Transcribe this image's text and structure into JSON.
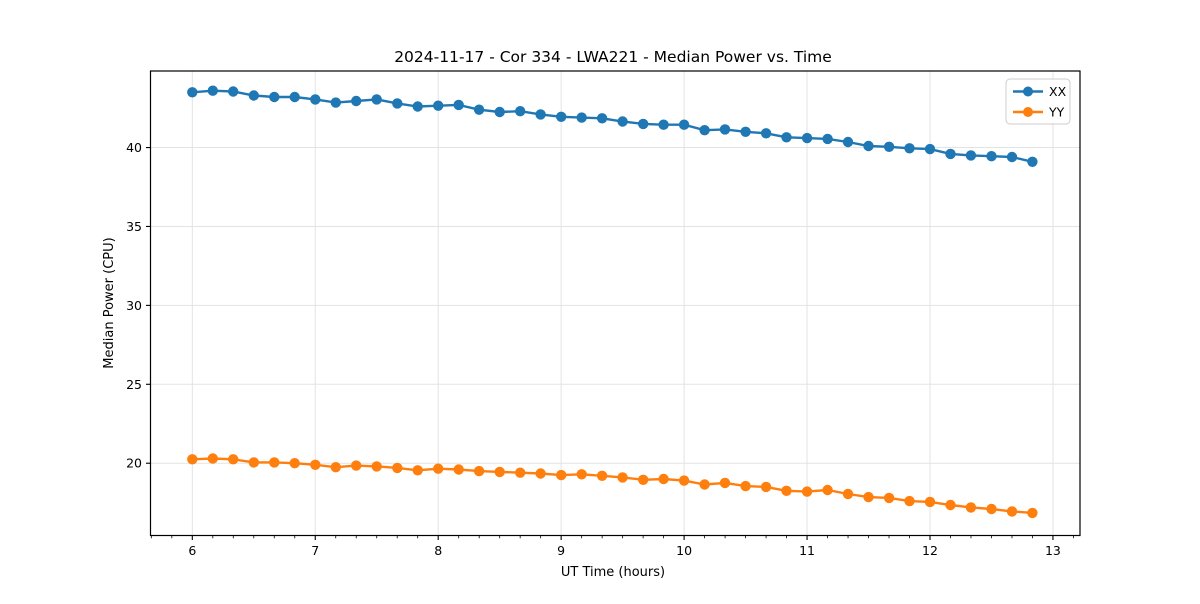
{
  "figure": {
    "title": "2024-11-17 - Cor 334 - LWA221 - Median Power vs. Time"
  },
  "chart_data": {
    "type": "line",
    "title": "2024-11-17 - Cor 334 - LWA221 - Median Power vs. Time",
    "xlabel": "UT Time (hours)",
    "ylabel": "Median Power (CPU)",
    "xlim": [
      5.66,
      13.22
    ],
    "ylim": [
      15.42,
      44.85
    ],
    "x_ticks": [
      6,
      7,
      8,
      9,
      10,
      11,
      12,
      13
    ],
    "y_ticks": [
      20,
      25,
      30,
      35,
      40
    ],
    "x_minor_tick_step_hours": 0.1667,
    "grid": true,
    "legend_position": "upper right",
    "marker": "o",
    "background": "#ffffff",
    "grid_color": "#e3e3e3",
    "x": [
      6.0,
      6.167,
      6.333,
      6.5,
      6.667,
      6.833,
      7.0,
      7.167,
      7.333,
      7.5,
      7.667,
      7.833,
      8.0,
      8.167,
      8.333,
      8.5,
      8.667,
      8.833,
      9.0,
      9.167,
      9.333,
      9.5,
      9.667,
      9.833,
      10.0,
      10.167,
      10.333,
      10.5,
      10.667,
      10.833,
      11.0,
      11.167,
      11.333,
      11.5,
      11.667,
      11.833,
      12.0,
      12.167,
      12.333,
      12.5,
      12.667,
      12.833
    ],
    "series": [
      {
        "name": "XX",
        "color": "#1f77b4",
        "values": [
          43.5,
          43.6,
          43.55,
          43.3,
          43.2,
          43.2,
          43.05,
          42.85,
          42.95,
          43.05,
          42.8,
          42.6,
          42.65,
          42.7,
          42.4,
          42.25,
          42.3,
          42.1,
          41.95,
          41.9,
          41.85,
          41.65,
          41.5,
          41.45,
          41.45,
          41.1,
          41.15,
          41.0,
          40.9,
          40.65,
          40.6,
          40.55,
          40.35,
          40.1,
          40.05,
          39.95,
          39.9,
          39.6,
          39.5,
          39.45,
          39.4,
          39.1
        ]
      },
      {
        "name": "YY",
        "color": "#ff7f0e",
        "values": [
          20.25,
          20.3,
          20.25,
          20.05,
          20.05,
          20.0,
          19.9,
          19.75,
          19.85,
          19.8,
          19.7,
          19.55,
          19.65,
          19.6,
          19.5,
          19.45,
          19.4,
          19.35,
          19.25,
          19.3,
          19.2,
          19.1,
          18.95,
          19.0,
          18.9,
          18.65,
          18.75,
          18.55,
          18.5,
          18.25,
          18.2,
          18.3,
          18.05,
          17.85,
          17.8,
          17.6,
          17.55,
          17.35,
          17.2,
          17.1,
          16.95,
          16.85
        ]
      }
    ]
  }
}
